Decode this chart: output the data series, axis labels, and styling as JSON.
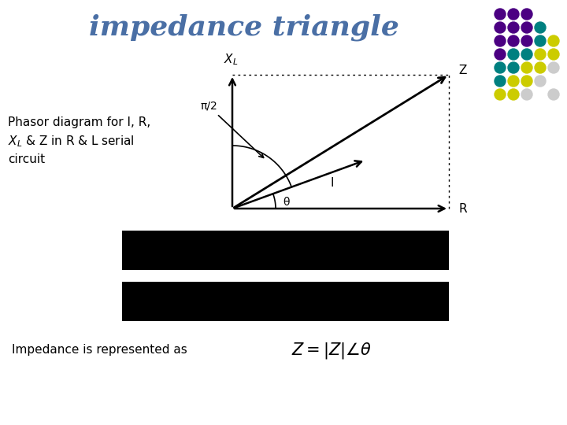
{
  "title": "impedance triangle",
  "title_color": "#4a6fa5",
  "title_fontsize": 26,
  "title_style": "italic",
  "title_weight": "bold",
  "title_font": "serif",
  "background_color": "#ffffff",
  "arrow_color": "#000000",
  "dotted_color": "#000000",
  "label_R": "R",
  "label_Z": "Z",
  "label_I": "I",
  "label_theta": "θ",
  "label_pi2": "π/2",
  "bar_color": "#000000",
  "impedance_text": "Impedance is represented as",
  "dot_colors": [
    [
      "#4b0082",
      "#4b0082",
      "#4b0082",
      null,
      null
    ],
    [
      "#4b0082",
      "#4b0082",
      "#4b0082",
      "#008080",
      null
    ],
    [
      "#4b0082",
      "#4b0082",
      "#4b0082",
      "#008080",
      "#cccc00"
    ],
    [
      "#4b0082",
      "#008080",
      "#008080",
      "#cccc00",
      "#cccc00"
    ],
    [
      "#008080",
      "#008080",
      "#cccc00",
      "#cccc00",
      "#cccccc"
    ],
    [
      "#008080",
      "#cccc00",
      "#cccc00",
      "#cccccc",
      null
    ],
    [
      "#cccc00",
      "#cccc00",
      "#cccccc",
      null,
      "#cccccc"
    ]
  ],
  "figsize": [
    7.2,
    5.4
  ],
  "dpi": 100
}
